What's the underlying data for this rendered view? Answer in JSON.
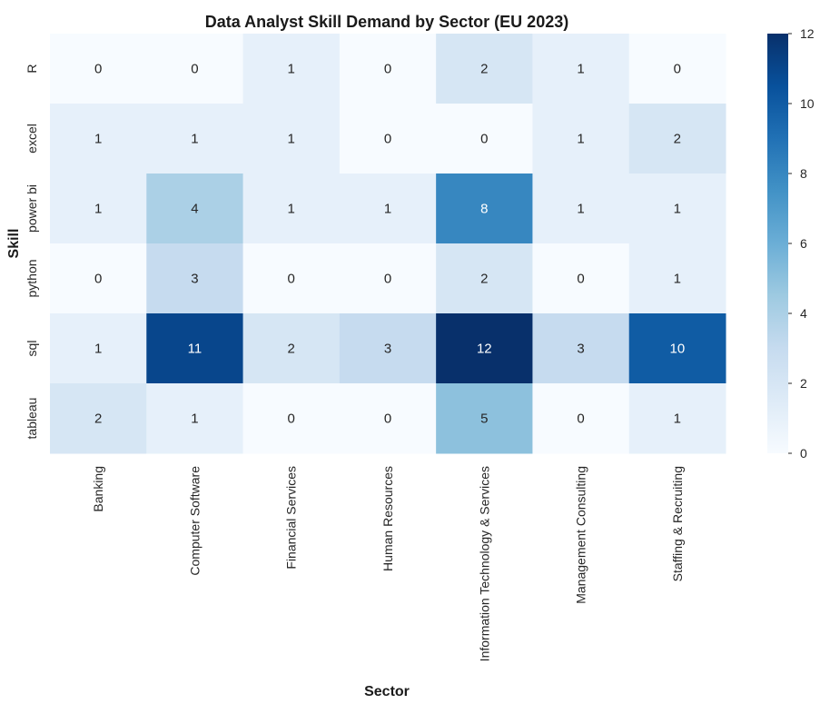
{
  "chart_data": {
    "type": "heatmap",
    "title": "Data Analyst Skill Demand by Sector (EU 2023)",
    "xlabel": "Sector",
    "ylabel": "Skill",
    "x_categories": [
      "Banking",
      "Computer Software",
      "Financial Services",
      "Human Resources",
      "Information Technology & Services",
      "Management Consulting",
      "Staffing & Recruiting"
    ],
    "y_categories": [
      "R",
      "excel",
      "power bi",
      "python",
      "sql",
      "tableau"
    ],
    "values": [
      [
        0,
        0,
        1,
        0,
        2,
        1,
        0
      ],
      [
        1,
        1,
        1,
        0,
        0,
        1,
        2
      ],
      [
        1,
        4,
        1,
        1,
        8,
        1,
        1
      ],
      [
        0,
        3,
        0,
        0,
        2,
        0,
        1
      ],
      [
        1,
        11,
        2,
        3,
        12,
        3,
        10
      ],
      [
        2,
        1,
        0,
        0,
        5,
        0,
        1
      ]
    ],
    "colormap": "Blues",
    "vmin": 0,
    "vmax": 12,
    "colorbar_ticks": [
      0,
      2,
      4,
      6,
      8,
      10,
      12
    ],
    "annotations": true
  }
}
